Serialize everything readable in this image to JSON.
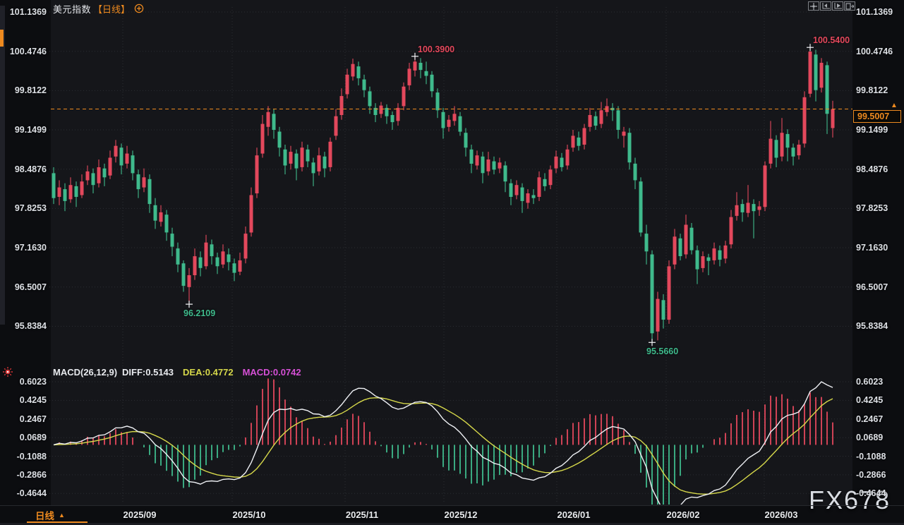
{
  "header": {
    "title": "美元指数",
    "period": "【日线】"
  },
  "toolbar": {
    "icons": [
      "pan-icon",
      "fit-scale-icon",
      "scroll-to-latest-icon",
      "new-pane-icon"
    ]
  },
  "macd_header": {
    "name": "MACD(26,12,9)",
    "diff": "DIFF:0.5143",
    "dea": "DEA:0.4772",
    "macd": "MACD:0.0742"
  },
  "bottom": {
    "tab": "日线",
    "tab_arrow": "▲"
  },
  "price_tag": {
    "value": "99.5007",
    "marker": "▲"
  },
  "watermark": "FX678",
  "colors": {
    "up": "#e3485c",
    "down": "#3fba8c",
    "accent": "#ee8a1f",
    "diff_line": "#eef0f4",
    "dea_line": "#d6d84a",
    "macd_value": "#d650d6",
    "grid": "#2b2d33",
    "cross": "#f3f4f6"
  },
  "chart_data": {
    "type": "candlestick",
    "title": "US Dollar Index, daily candlesticks with MACD(26,12,9)",
    "price_axis_labels": [
      "101.1369",
      "100.4746",
      "99.8122",
      "99.1499",
      "98.4876",
      "97.8253",
      "97.1630",
      "96.5007",
      "95.8384"
    ],
    "price_axis_range": [
      95.8384,
      101.1369
    ],
    "macd_axis_labels": [
      "0.6023",
      "0.4245",
      "0.2467",
      "0.0689",
      "-0.1088",
      "-0.2866",
      "-0.4644"
    ],
    "macd_axis_range": [
      -0.4644,
      0.6023
    ],
    "x_labels": [
      "2025/09",
      "2025/10",
      "2025/11",
      "2025/12",
      "2026/01",
      "2026/02",
      "2026/03"
    ],
    "current_price": 99.5007,
    "macd_params": [
      26,
      12,
      9
    ],
    "macd_values": {
      "diff": 0.5143,
      "dea": 0.4772,
      "macd": 0.0742
    },
    "annotations": [
      {
        "text": "100.3900",
        "index": 64,
        "price": 100.39,
        "dir": "up"
      },
      {
        "text": "100.5400",
        "index": 134,
        "price": 100.54,
        "dir": "up"
      },
      {
        "text": "96.2109",
        "index": 24,
        "price": 96.2109,
        "dir": "down"
      },
      {
        "text": "95.5660",
        "index": 106,
        "price": 95.566,
        "dir": "down"
      }
    ],
    "candles": [
      [
        98.42,
        98.52,
        97.9,
        98.0
      ],
      [
        98.02,
        98.3,
        97.88,
        98.18
      ],
      [
        98.15,
        98.25,
        97.78,
        97.95
      ],
      [
        97.98,
        98.35,
        97.92,
        98.22
      ],
      [
        98.2,
        98.28,
        97.85,
        98.02
      ],
      [
        98.05,
        98.4,
        98.0,
        98.28
      ],
      [
        98.3,
        98.55,
        98.22,
        98.45
      ],
      [
        98.42,
        98.5,
        98.08,
        98.22
      ],
      [
        98.25,
        98.65,
        98.18,
        98.52
      ],
      [
        98.5,
        98.58,
        98.2,
        98.35
      ],
      [
        98.38,
        98.8,
        98.32,
        98.68
      ],
      [
        98.7,
        98.98,
        98.6,
        98.88
      ],
      [
        98.85,
        98.92,
        98.4,
        98.55
      ],
      [
        98.58,
        98.88,
        98.5,
        98.75
      ],
      [
        98.72,
        98.8,
        98.3,
        98.42
      ],
      [
        98.4,
        98.48,
        98.0,
        98.15
      ],
      [
        98.18,
        98.5,
        98.1,
        98.35
      ],
      [
        98.32,
        98.4,
        97.75,
        97.9
      ],
      [
        97.88,
        98.0,
        97.48,
        97.62
      ],
      [
        97.6,
        97.88,
        97.52,
        97.76
      ],
      [
        97.72,
        97.8,
        97.28,
        97.42
      ],
      [
        97.4,
        97.5,
        97.02,
        97.18
      ],
      [
        97.15,
        97.25,
        96.75,
        96.88
      ],
      [
        96.9,
        96.95,
        96.42,
        96.52
      ],
      [
        96.5,
        96.82,
        96.21,
        96.7
      ],
      [
        96.7,
        97.15,
        96.62,
        97.02
      ],
      [
        97.0,
        97.1,
        96.68,
        96.82
      ],
      [
        96.85,
        97.38,
        96.8,
        97.25
      ],
      [
        97.22,
        97.3,
        96.88,
        97.02
      ],
      [
        97.0,
        97.08,
        96.72,
        96.85
      ],
      [
        96.88,
        97.22,
        96.82,
        97.1
      ],
      [
        97.05,
        97.15,
        96.78,
        96.92
      ],
      [
        96.9,
        96.98,
        96.6,
        96.74
      ],
      [
        96.76,
        97.08,
        96.7,
        96.95
      ],
      [
        96.98,
        97.52,
        96.9,
        97.4
      ],
      [
        97.42,
        98.18,
        97.35,
        98.05
      ],
      [
        98.08,
        98.85,
        98.0,
        98.72
      ],
      [
        98.75,
        99.4,
        98.68,
        99.25
      ],
      [
        99.2,
        99.55,
        99.05,
        99.45
      ],
      [
        99.42,
        99.5,
        99.0,
        99.15
      ],
      [
        99.12,
        99.2,
        98.7,
        98.85
      ],
      [
        98.82,
        98.9,
        98.4,
        98.55
      ],
      [
        98.58,
        98.88,
        98.48,
        98.78
      ],
      [
        98.75,
        98.82,
        98.3,
        98.5
      ],
      [
        98.52,
        98.95,
        98.45,
        98.85
      ],
      [
        98.82,
        98.9,
        98.52,
        98.62
      ],
      [
        98.6,
        98.68,
        98.2,
        98.42
      ],
      [
        98.45,
        98.85,
        98.38,
        98.72
      ],
      [
        98.7,
        98.78,
        98.35,
        98.5
      ],
      [
        98.52,
        99.02,
        98.45,
        98.95
      ],
      [
        99.05,
        99.5,
        98.98,
        99.38
      ],
      [
        99.4,
        99.85,
        99.32,
        99.72
      ],
      [
        99.75,
        100.18,
        99.68,
        100.08
      ],
      [
        100.05,
        100.35,
        99.98,
        100.26
      ],
      [
        100.22,
        100.3,
        99.9,
        100.02
      ],
      [
        100.0,
        100.08,
        99.7,
        99.82
      ],
      [
        99.8,
        99.88,
        99.42,
        99.55
      ],
      [
        99.52,
        99.6,
        99.28,
        99.4
      ],
      [
        99.42,
        99.62,
        99.35,
        99.56
      ],
      [
        99.52,
        99.58,
        99.25,
        99.38
      ],
      [
        99.4,
        99.46,
        99.15,
        99.28
      ],
      [
        99.3,
        99.6,
        99.22,
        99.52
      ],
      [
        99.55,
        99.95,
        99.48,
        99.88
      ],
      [
        99.9,
        100.28,
        99.82,
        100.18
      ],
      [
        100.15,
        100.39,
        100.05,
        100.3
      ],
      [
        100.28,
        100.36,
        100.02,
        100.16
      ],
      [
        100.14,
        100.3,
        99.92,
        100.06
      ],
      [
        100.08,
        100.14,
        99.7,
        99.8
      ],
      [
        99.78,
        99.85,
        99.35,
        99.48
      ],
      [
        99.45,
        99.52,
        99.0,
        99.18
      ],
      [
        99.2,
        99.4,
        99.12,
        99.32
      ],
      [
        99.3,
        99.55,
        99.22,
        99.42
      ],
      [
        99.38,
        99.45,
        99.05,
        99.12
      ],
      [
        99.1,
        99.18,
        98.7,
        98.85
      ],
      [
        98.82,
        98.9,
        98.42,
        98.58
      ],
      [
        98.55,
        98.8,
        98.48,
        98.72
      ],
      [
        98.7,
        98.78,
        98.25,
        98.42
      ],
      [
        98.45,
        98.78,
        98.38,
        98.65
      ],
      [
        98.62,
        98.7,
        98.4,
        98.48
      ],
      [
        98.5,
        98.68,
        98.42,
        98.6
      ],
      [
        98.55,
        98.62,
        98.1,
        98.28
      ],
      [
        98.25,
        98.32,
        97.88,
        98.02
      ],
      [
        98.05,
        98.3,
        97.98,
        98.22
      ],
      [
        98.18,
        98.25,
        97.75,
        97.95
      ],
      [
        97.92,
        98.15,
        97.82,
        98.08
      ],
      [
        98.05,
        98.15,
        97.9,
        98.0
      ],
      [
        98.02,
        98.45,
        97.95,
        98.35
      ],
      [
        98.32,
        98.42,
        98.12,
        98.2
      ],
      [
        98.22,
        98.55,
        98.15,
        98.48
      ],
      [
        98.5,
        98.8,
        98.42,
        98.7
      ],
      [
        98.68,
        98.76,
        98.45,
        98.52
      ],
      [
        98.55,
        98.9,
        98.48,
        98.82
      ],
      [
        98.85,
        99.15,
        98.78,
        99.05
      ],
      [
        99.02,
        99.12,
        98.8,
        98.88
      ],
      [
        98.9,
        99.25,
        98.82,
        99.18
      ],
      [
        99.2,
        99.52,
        99.12,
        99.4
      ],
      [
        99.38,
        99.46,
        99.15,
        99.22
      ],
      [
        99.25,
        99.62,
        99.18,
        99.48
      ],
      [
        99.45,
        99.68,
        99.38,
        99.55
      ],
      [
        99.52,
        99.6,
        99.3,
        99.48
      ],
      [
        99.48,
        99.55,
        99.0,
        99.15
      ],
      [
        99.05,
        99.2,
        98.85,
        99.12
      ],
      [
        99.1,
        99.18,
        98.48,
        98.6
      ],
      [
        98.58,
        98.68,
        98.15,
        98.3
      ],
      [
        98.28,
        98.35,
        97.35,
        97.42
      ],
      [
        97.4,
        97.55,
        96.88,
        97.1
      ],
      [
        97.05,
        97.12,
        95.566,
        95.72
      ],
      [
        95.75,
        96.42,
        95.6,
        96.3
      ],
      [
        96.28,
        96.38,
        95.8,
        95.95
      ],
      [
        95.95,
        96.95,
        95.88,
        96.85
      ],
      [
        96.88,
        97.48,
        96.8,
        97.35
      ],
      [
        97.32,
        97.4,
        96.95,
        97.02
      ],
      [
        97.05,
        97.72,
        96.98,
        97.55
      ],
      [
        97.5,
        97.58,
        97.05,
        97.12
      ],
      [
        97.12,
        97.2,
        96.55,
        96.8
      ],
      [
        96.82,
        97.1,
        96.75,
        97.02
      ],
      [
        97.0,
        97.06,
        96.7,
        96.94
      ],
      [
        96.95,
        97.25,
        96.88,
        97.15
      ],
      [
        97.12,
        97.2,
        96.85,
        96.96
      ],
      [
        96.98,
        97.28,
        96.9,
        97.2
      ],
      [
        97.22,
        97.8,
        97.15,
        97.68
      ],
      [
        97.7,
        98.1,
        97.62,
        97.88
      ],
      [
        97.9,
        97.98,
        97.6,
        97.76
      ],
      [
        97.75,
        98.22,
        97.68,
        97.92
      ],
      [
        97.9,
        97.98,
        97.32,
        97.78
      ],
      [
        97.8,
        97.95,
        97.7,
        97.86
      ],
      [
        97.85,
        98.62,
        97.78,
        98.55
      ],
      [
        98.58,
        99.3,
        98.5,
        99.0
      ],
      [
        98.98,
        99.06,
        98.52,
        98.68
      ],
      [
        98.7,
        99.35,
        98.62,
        99.1
      ],
      [
        99.08,
        99.16,
        98.62,
        98.85
      ],
      [
        98.85,
        98.92,
        98.55,
        98.7
      ],
      [
        98.72,
        98.98,
        98.65,
        98.9
      ],
      [
        98.92,
        99.8,
        98.85,
        99.7
      ],
      [
        99.76,
        100.54,
        99.7,
        100.47
      ],
      [
        100.42,
        100.5,
        99.63,
        99.82
      ],
      [
        99.86,
        100.36,
        99.78,
        100.28
      ],
      [
        100.24,
        100.3,
        99.08,
        99.42
      ],
      [
        99.18,
        99.64,
        99.02,
        99.5
      ]
    ]
  }
}
